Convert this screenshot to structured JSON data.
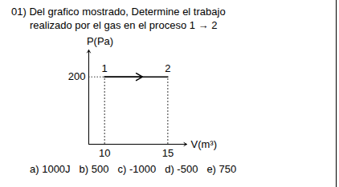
{
  "question": [
    "01) Del grafico mostrado, Determine el trabajo",
    "realizado por el gas en el proceso 1 → 2"
  ],
  "chart_data": {
    "type": "line",
    "x": [
      10,
      15
    ],
    "values": [
      200,
      200
    ],
    "point_labels": [
      "1",
      "2"
    ],
    "xlabel": "V(m³)",
    "ylabel": "P(Pa)",
    "xlim": [
      8.75,
      16.5
    ],
    "ylim": [
      0,
      280
    ],
    "xticks": [
      10,
      15
    ],
    "yticks": [
      200
    ],
    "color": "#000000",
    "line_style": "solid",
    "marker": "none"
  },
  "options": [
    "a) 1000J",
    "b) 500",
    "c) -1000",
    "d) -500",
    "e) 750"
  ]
}
